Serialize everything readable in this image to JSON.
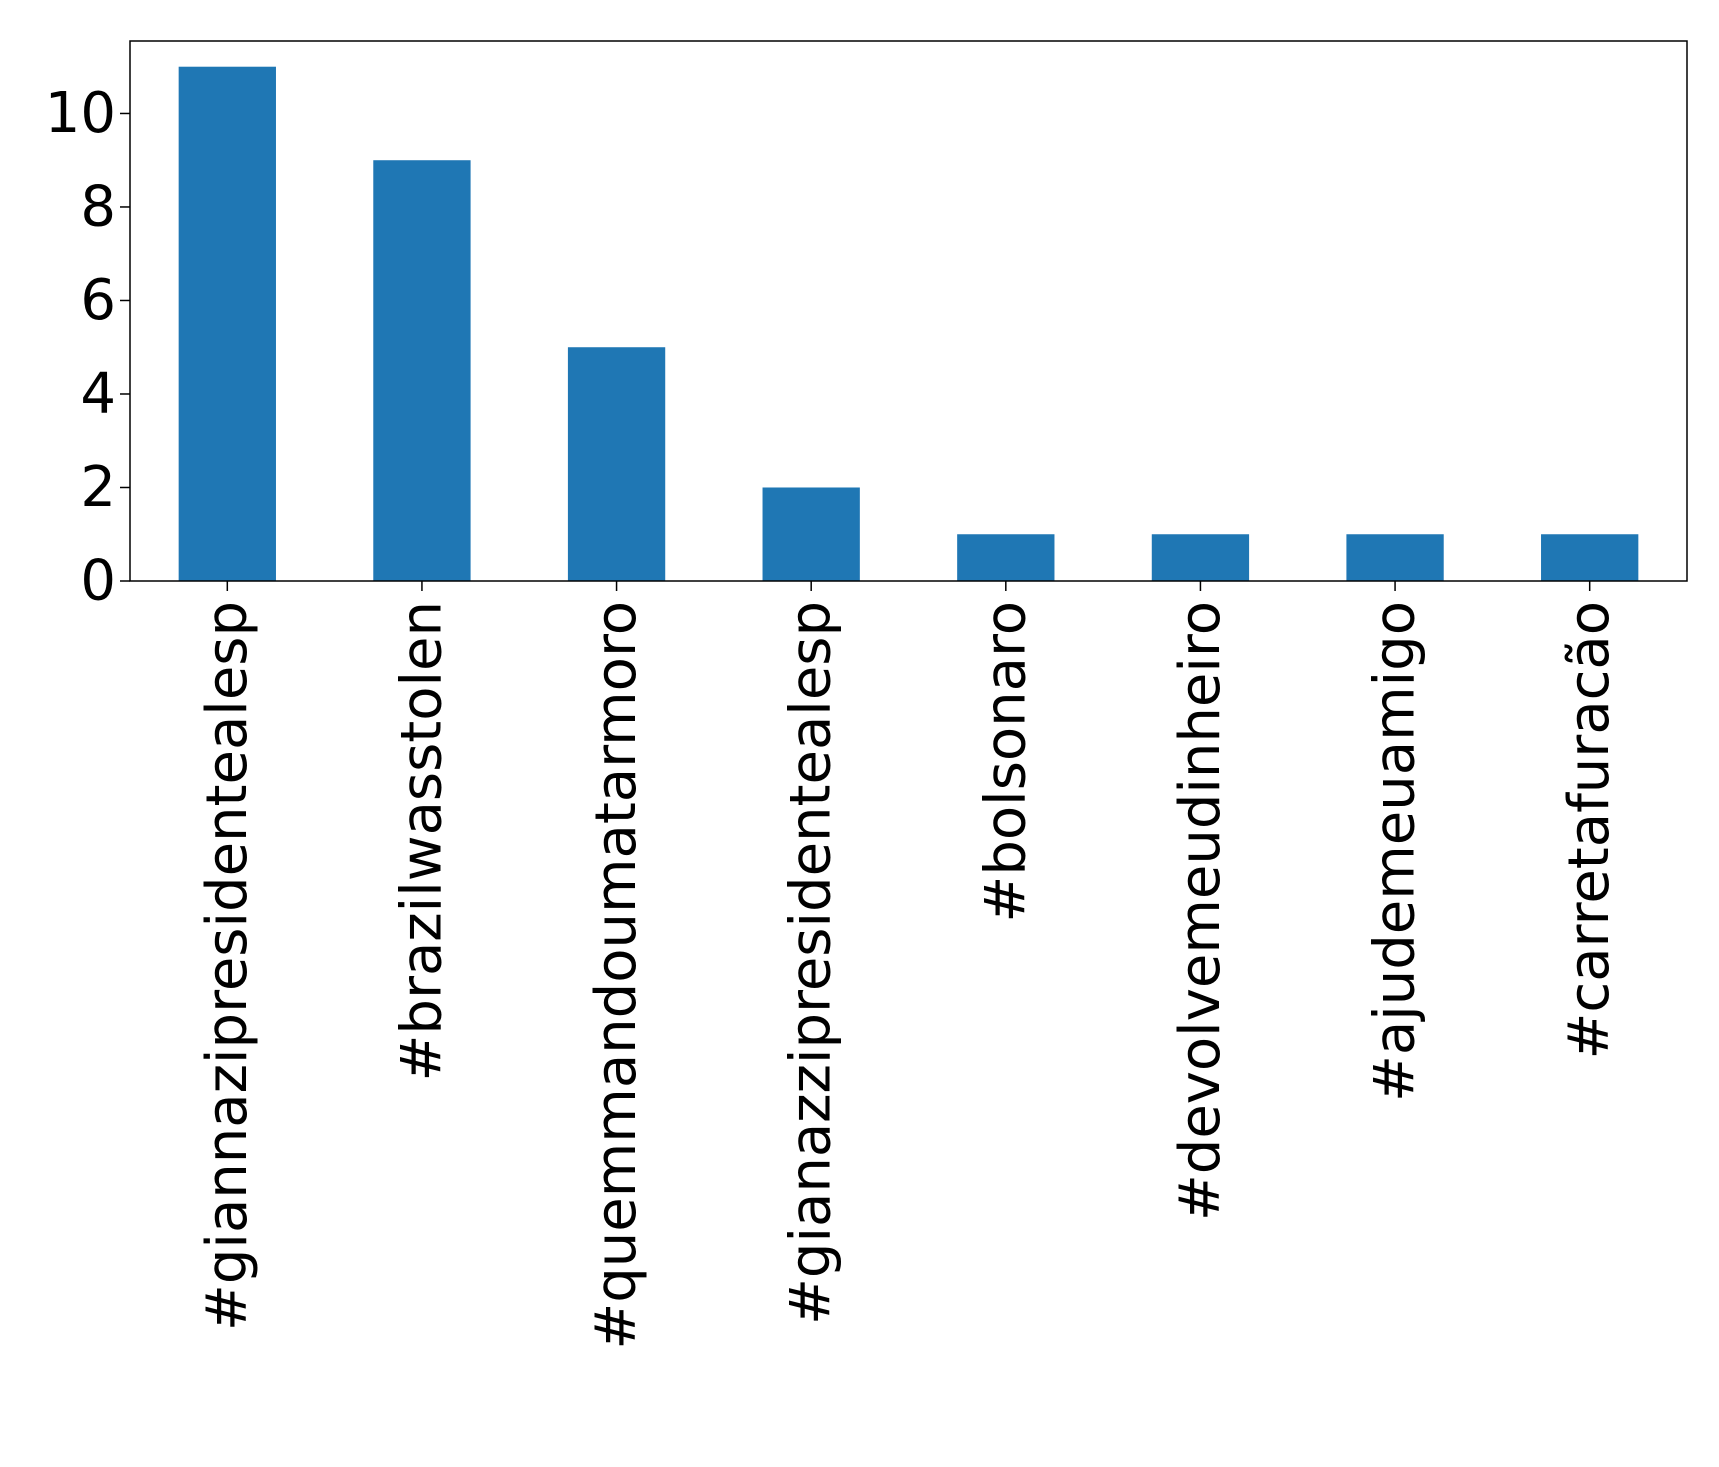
{
  "chart_data": {
    "type": "bar",
    "title": "",
    "xlabel": "",
    "ylabel": "",
    "categories": [
      "#giannazipresidentealesp",
      "#brazilwasstolen",
      "#quemmandoumatarmoro",
      "#gianazzipresidentealesp",
      "#bolsonaro",
      "#devolvemeudinheiro",
      "#ajudemeuamigo",
      "#carretafuracão"
    ],
    "values": [
      11,
      9,
      5,
      2,
      1,
      1,
      1,
      1
    ],
    "ylim": [
      0,
      11.55
    ],
    "yticks": [
      0,
      2,
      4,
      6,
      8,
      10
    ],
    "grid": false,
    "legend": "none",
    "bar_color": "#1f77b4",
    "axis_color": "#000000"
  }
}
